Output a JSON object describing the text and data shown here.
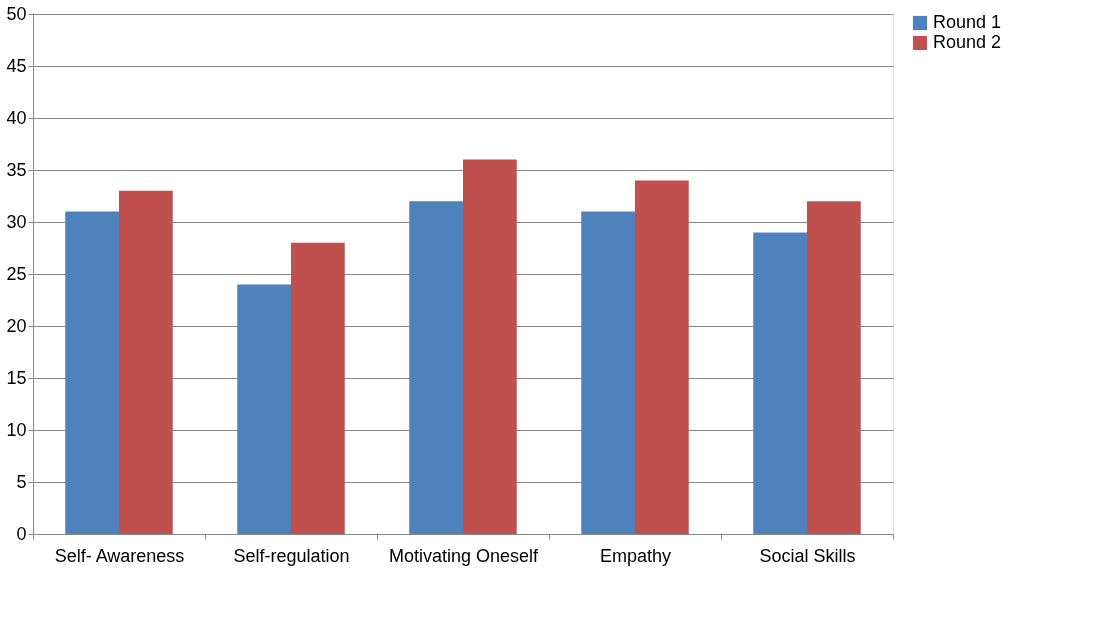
{
  "chart_data": {
    "type": "bar",
    "categories": [
      "Self- Awareness",
      "Self-regulation",
      "Motivating Oneself",
      "Empathy",
      "Social Skills"
    ],
    "series": [
      {
        "name": "Round 1",
        "color": "#4f81bd",
        "values": [
          31,
          24,
          32,
          31,
          29
        ]
      },
      {
        "name": "Round 2",
        "color": "#c0504d",
        "values": [
          33,
          28,
          36,
          34,
          32
        ]
      }
    ],
    "ylim": [
      0,
      50
    ],
    "yticks": [
      0,
      5,
      10,
      15,
      20,
      25,
      30,
      35,
      40,
      45,
      50
    ],
    "grid": "y",
    "legend": "right"
  }
}
